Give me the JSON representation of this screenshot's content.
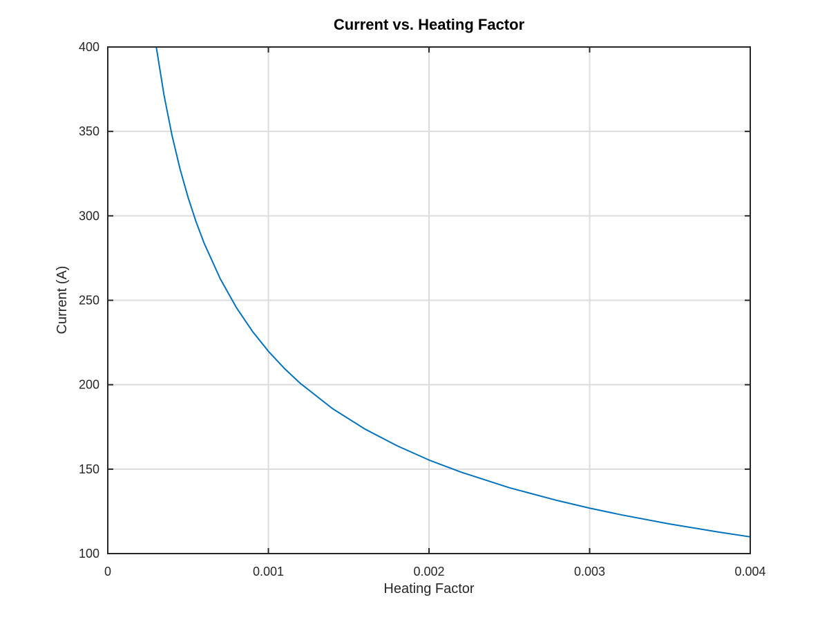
{
  "chart_data": {
    "type": "line",
    "title": "Current vs. Heating Factor",
    "xlabel": "Heating Factor",
    "ylabel": "Current (A)",
    "xlim": [
      0,
      0.004
    ],
    "ylim": [
      100,
      400
    ],
    "grid": true,
    "xticks": [
      0,
      0.001,
      0.002,
      0.003,
      0.004
    ],
    "xtick_labels": [
      "0",
      "0.001",
      "0.002",
      "0.003",
      "0.004"
    ],
    "yticks": [
      100,
      150,
      200,
      250,
      300,
      350,
      400
    ],
    "ytick_labels": [
      "100",
      "150",
      "200",
      "250",
      "300",
      "350",
      "400"
    ],
    "series": [
      {
        "color": "#0072bd",
        "x": [
          0.000302,
          0.00035,
          0.0004,
          0.00045,
          0.0005,
          0.00055,
          0.0006,
          0.0007,
          0.0008,
          0.0009,
          0.001,
          0.0011,
          0.0012,
          0.0014,
          0.0016,
          0.0018,
          0.002,
          0.0022,
          0.0025,
          0.0028,
          0.003,
          0.0032,
          0.0035,
          0.0038,
          0.004
        ],
        "y": [
          400,
          371.6,
          347.6,
          327.7,
          310.9,
          296.4,
          283.8,
          262.8,
          245.8,
          231.7,
          219.8,
          209.6,
          200.7,
          185.8,
          173.8,
          163.9,
          155.4,
          148.2,
          139.0,
          131.4,
          126.9,
          122.9,
          117.5,
          112.8,
          109.9
        ]
      }
    ]
  }
}
